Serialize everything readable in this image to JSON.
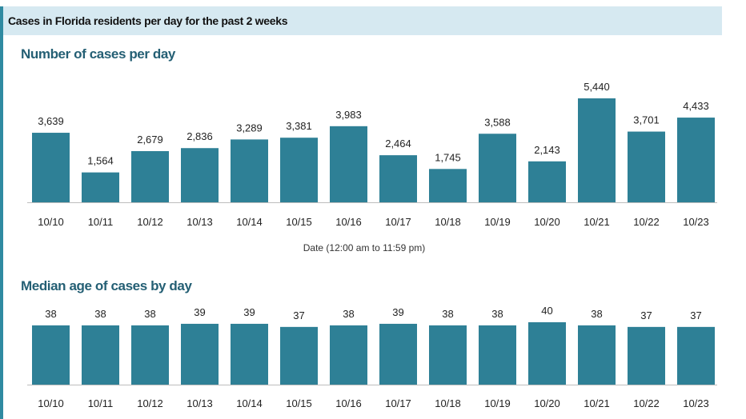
{
  "header": {
    "title": "Cases in Florida residents per day for the past 2 weeks"
  },
  "colors": {
    "bar": "#2e8096",
    "header_bg": "#d6e9f1",
    "title_text": "#245f74",
    "axis_line": "#bdbdbd"
  },
  "chart_data": [
    {
      "type": "bar",
      "title": "Number of cases per day",
      "xlabel": "Date (12:00 am to 11:59 pm)",
      "ylabel": "",
      "categories": [
        "10/10",
        "10/11",
        "10/12",
        "10/13",
        "10/14",
        "10/15",
        "10/16",
        "10/17",
        "10/18",
        "10/19",
        "10/20",
        "10/21",
        "10/22",
        "10/23"
      ],
      "values": [
        3639,
        1564,
        2679,
        2836,
        3289,
        3381,
        3983,
        2464,
        1745,
        3588,
        2143,
        5440,
        3701,
        4433
      ],
      "value_labels": [
        "3,639",
        "1,564",
        "2,679",
        "2,836",
        "3,289",
        "3,381",
        "3,983",
        "2,464",
        "1,745",
        "3,588",
        "2,143",
        "5,440",
        "3,701",
        "4,433"
      ],
      "ylim": [
        0,
        5440
      ],
      "grid": false
    },
    {
      "type": "bar",
      "title": "Median age of cases by day",
      "xlabel": "",
      "ylabel": "",
      "categories": [
        "10/10",
        "10/11",
        "10/12",
        "10/13",
        "10/14",
        "10/15",
        "10/16",
        "10/17",
        "10/18",
        "10/19",
        "10/20",
        "10/21",
        "10/22",
        "10/23"
      ],
      "values": [
        38,
        38,
        38,
        39,
        39,
        37,
        38,
        39,
        38,
        38,
        40,
        38,
        37,
        37
      ],
      "value_labels": [
        "38",
        "38",
        "38",
        "39",
        "39",
        "37",
        "38",
        "39",
        "38",
        "38",
        "40",
        "38",
        "37",
        "37"
      ],
      "ylim": [
        0,
        40
      ],
      "grid": false
    }
  ]
}
